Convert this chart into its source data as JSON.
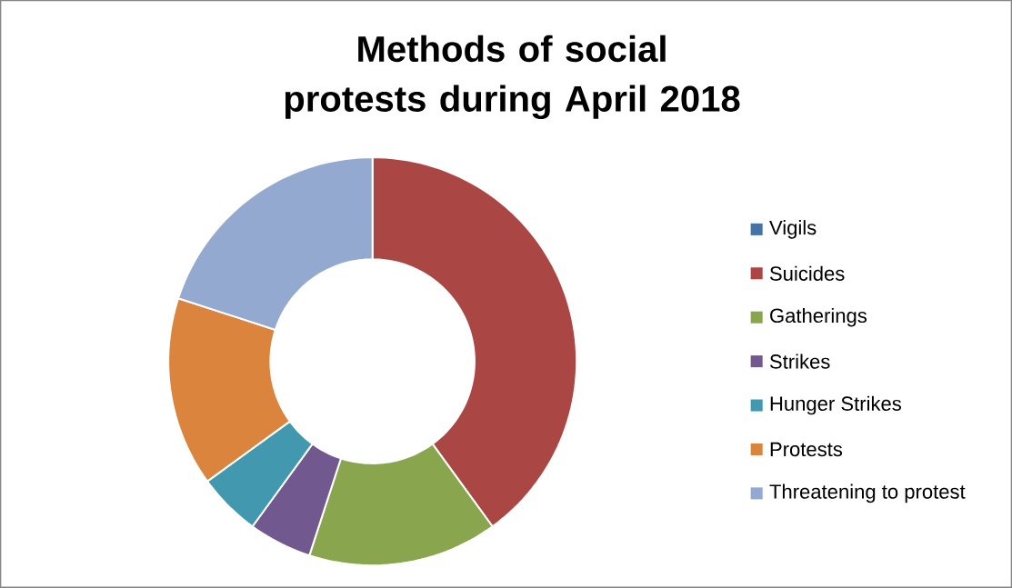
{
  "chart_data": {
    "type": "donut",
    "title": "Methods of social protests during April 2018",
    "categories": [
      "Vigils",
      "Suicides",
      "Gatherings",
      "Strikes",
      "Hunger Strikes",
      "Protests",
      "Threatening to protest"
    ],
    "values": [
      0,
      40,
      15,
      5,
      5,
      15,
      20
    ],
    "colors": [
      "#4572a7",
      "#aa4643",
      "#89a54e",
      "#71588f",
      "#4198af",
      "#db843d",
      "#93a9cf"
    ],
    "legend": "right"
  }
}
